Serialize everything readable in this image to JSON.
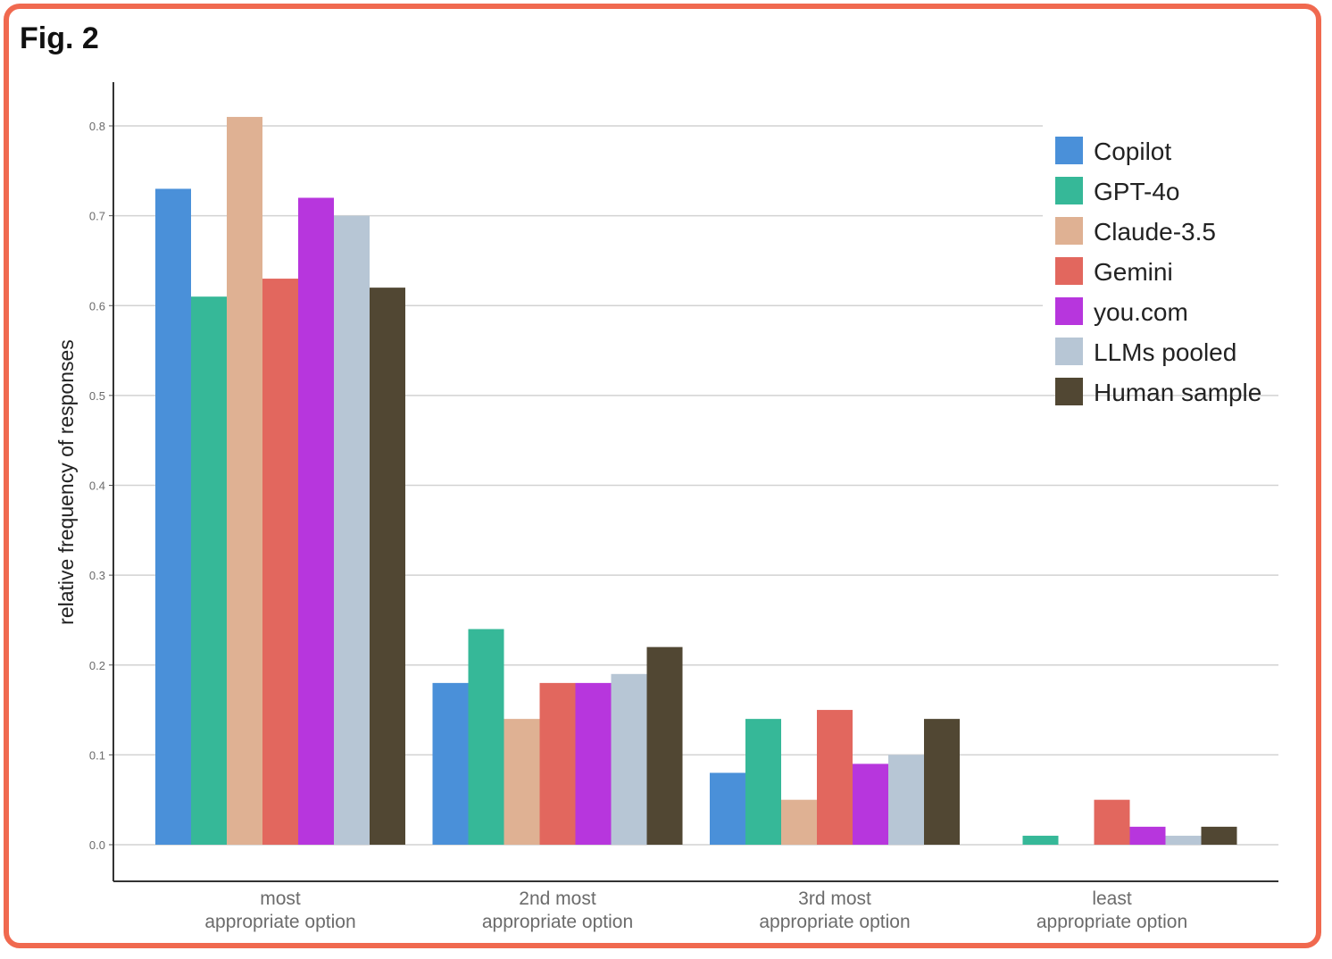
{
  "figure": {
    "label": "Fig. 2"
  },
  "chart_data": {
    "type": "bar",
    "title": "",
    "xlabel": "",
    "ylabel": "relative frequency of responses",
    "ylim": [
      0,
      0.8
    ],
    "yticks": [
      "0.0",
      "0.1",
      "0.2",
      "0.3",
      "0.4",
      "0.5",
      "0.6",
      "0.7",
      "0.8"
    ],
    "grid": true,
    "legend_position": "top-right",
    "categories": [
      [
        "most",
        "appropriate option"
      ],
      [
        "2nd most",
        "appropriate option"
      ],
      [
        "3rd most",
        "appropriate option"
      ],
      [
        "least",
        "appropriate option"
      ]
    ],
    "series": [
      {
        "name": "Copilot",
        "color": "#4a90d9",
        "values": [
          0.73,
          0.18,
          0.08,
          0.0
        ]
      },
      {
        "name": "GPT-4o",
        "color": "#36b898",
        "values": [
          0.61,
          0.24,
          0.14,
          0.01
        ]
      },
      {
        "name": "Claude-3.5",
        "color": "#dfb193",
        "values": [
          0.81,
          0.14,
          0.05,
          0.0
        ]
      },
      {
        "name": "Gemini",
        "color": "#e2675e",
        "values": [
          0.63,
          0.18,
          0.15,
          0.05
        ]
      },
      {
        "name": "you.com",
        "color": "#b736dd",
        "values": [
          0.72,
          0.18,
          0.09,
          0.02
        ]
      },
      {
        "name": "LLMs pooled",
        "color": "#b7c6d5",
        "values": [
          0.7,
          0.19,
          0.1,
          0.01
        ]
      },
      {
        "name": "Human sample",
        "color": "#514733",
        "values": [
          0.62,
          0.22,
          0.14,
          0.02
        ]
      }
    ]
  }
}
